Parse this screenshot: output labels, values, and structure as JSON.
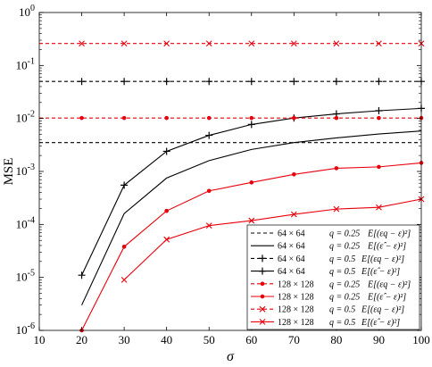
{
  "chart_data": {
    "type": "line",
    "title": "",
    "xlabel": "σ",
    "ylabel": "MSE",
    "xlim": [
      10,
      100
    ],
    "ylim": [
      1e-06,
      1
    ],
    "yscale": "log",
    "grid": false,
    "legend_position": "bottom-right",
    "x_ticks": [
      10,
      20,
      30,
      40,
      50,
      60,
      70,
      80,
      90,
      100
    ],
    "y_ticks": [
      {
        "value": 1e-06,
        "base": "10",
        "exp": "-6"
      },
      {
        "value": 1e-05,
        "base": "10",
        "exp": "-5"
      },
      {
        "value": 0.0001,
        "base": "10",
        "exp": "-4"
      },
      {
        "value": 0.001,
        "base": "10",
        "exp": "-3"
      },
      {
        "value": 0.01,
        "base": "10",
        "exp": "-2"
      },
      {
        "value": 0.1,
        "base": "10",
        "exp": "-1"
      },
      {
        "value": 1,
        "base": "10",
        "exp": "0"
      }
    ],
    "x": [
      20,
      30,
      40,
      50,
      60,
      70,
      80,
      90,
      100
    ],
    "series": [
      {
        "name": "64 × 64    q = 0.25  E[(ε_q − ε)^2]",
        "legend_parts": {
          "size": "64 × 64",
          "q": "q = 0.25",
          "expr": "E[(εq − ε)²]"
        },
        "color": "#000000",
        "dash": "4,3",
        "marker": "none",
        "values": [
          0.0035,
          0.0035,
          0.0035,
          0.0035,
          0.0035,
          0.0035,
          0.0035,
          0.0035,
          0.0035
        ],
        "x_range": [
          10,
          100
        ]
      },
      {
        "name": "64 × 64    q = 0.25  E[(ε̂ − ε)^2]",
        "legend_parts": {
          "size": "64 × 64",
          "q": "q = 0.25",
          "expr": "E[(ε̂ − ε)²]"
        },
        "color": "#000000",
        "dash": "",
        "marker": "none",
        "values": [
          3e-06,
          0.00016,
          0.00075,
          0.0016,
          0.0026,
          0.0035,
          0.0043,
          0.0051,
          0.0058
        ]
      },
      {
        "name": "64 × 64    q = 0.5  E[(ε_q − ε)^2]",
        "legend_parts": {
          "size": "64 × 64",
          "q": "q = 0.5",
          "expr": "E[(εq − ε)²]"
        },
        "color": "#000000",
        "dash": "4,3",
        "marker": "plus",
        "values": [
          0.05,
          0.05,
          0.05,
          0.05,
          0.05,
          0.05,
          0.05,
          0.05,
          0.05
        ],
        "x_range": [
          10,
          100
        ]
      },
      {
        "name": "64 × 64    q = 0.5  E[(ε̂ − ε)^2]",
        "legend_parts": {
          "size": "64 × 64",
          "q": "q = 0.5",
          "expr": "E[(ε̂ − ε)²]"
        },
        "color": "#000000",
        "dash": "",
        "marker": "plus",
        "values": [
          1.1e-05,
          0.00055,
          0.0024,
          0.0048,
          0.0077,
          0.0102,
          0.0122,
          0.014,
          0.0155
        ]
      },
      {
        "name": "128 × 128  q = 0.25  E[(ε_q − ε)^2]",
        "legend_parts": {
          "size": "128 × 128",
          "q": "q = 0.25",
          "expr": "E[(εq − ε)²]"
        },
        "color": "#e8000b",
        "dash": "4,3",
        "marker": "dot",
        "values": [
          0.0102,
          0.0102,
          0.0102,
          0.0102,
          0.0102,
          0.0102,
          0.0102,
          0.0102,
          0.0102
        ],
        "x_range": [
          10,
          100
        ]
      },
      {
        "name": "128 × 128  q = 0.25  E[(ε̂ − ε)^2]",
        "legend_parts": {
          "size": "128 × 128",
          "q": "q = 0.25",
          "expr": "E[(ε̂ − ε)²]"
        },
        "color": "#e8000b",
        "dash": "",
        "marker": "dot",
        "values": [
          1e-06,
          3.8e-05,
          0.00018,
          0.00043,
          0.00062,
          0.00088,
          0.00115,
          0.00122,
          0.00145
        ]
      },
      {
        "name": "128 × 128  q = 0.5  E[(ε_q − ε)^2]",
        "legend_parts": {
          "size": "128 × 128",
          "q": "q = 0.5",
          "expr": "E[(εq − ε)²]"
        },
        "color": "#e8000b",
        "dash": "4,3",
        "marker": "x",
        "values": [
          0.26,
          0.26,
          0.26,
          0.26,
          0.26,
          0.26,
          0.26,
          0.26,
          0.26
        ],
        "x_range": [
          10,
          100
        ]
      },
      {
        "name": "128 × 128  q = 0.5  E[(ε̂ − ε)^2]",
        "legend_parts": {
          "size": "128 × 128",
          "q": "q = 0.5",
          "expr": "E[(ε̂ − ε)²]"
        },
        "color": "#e8000b",
        "dash": "",
        "marker": "x",
        "values": [
          null,
          9e-06,
          5.2e-05,
          9.5e-05,
          0.000118,
          0.000155,
          0.000195,
          0.00021,
          0.0003
        ]
      }
    ]
  }
}
